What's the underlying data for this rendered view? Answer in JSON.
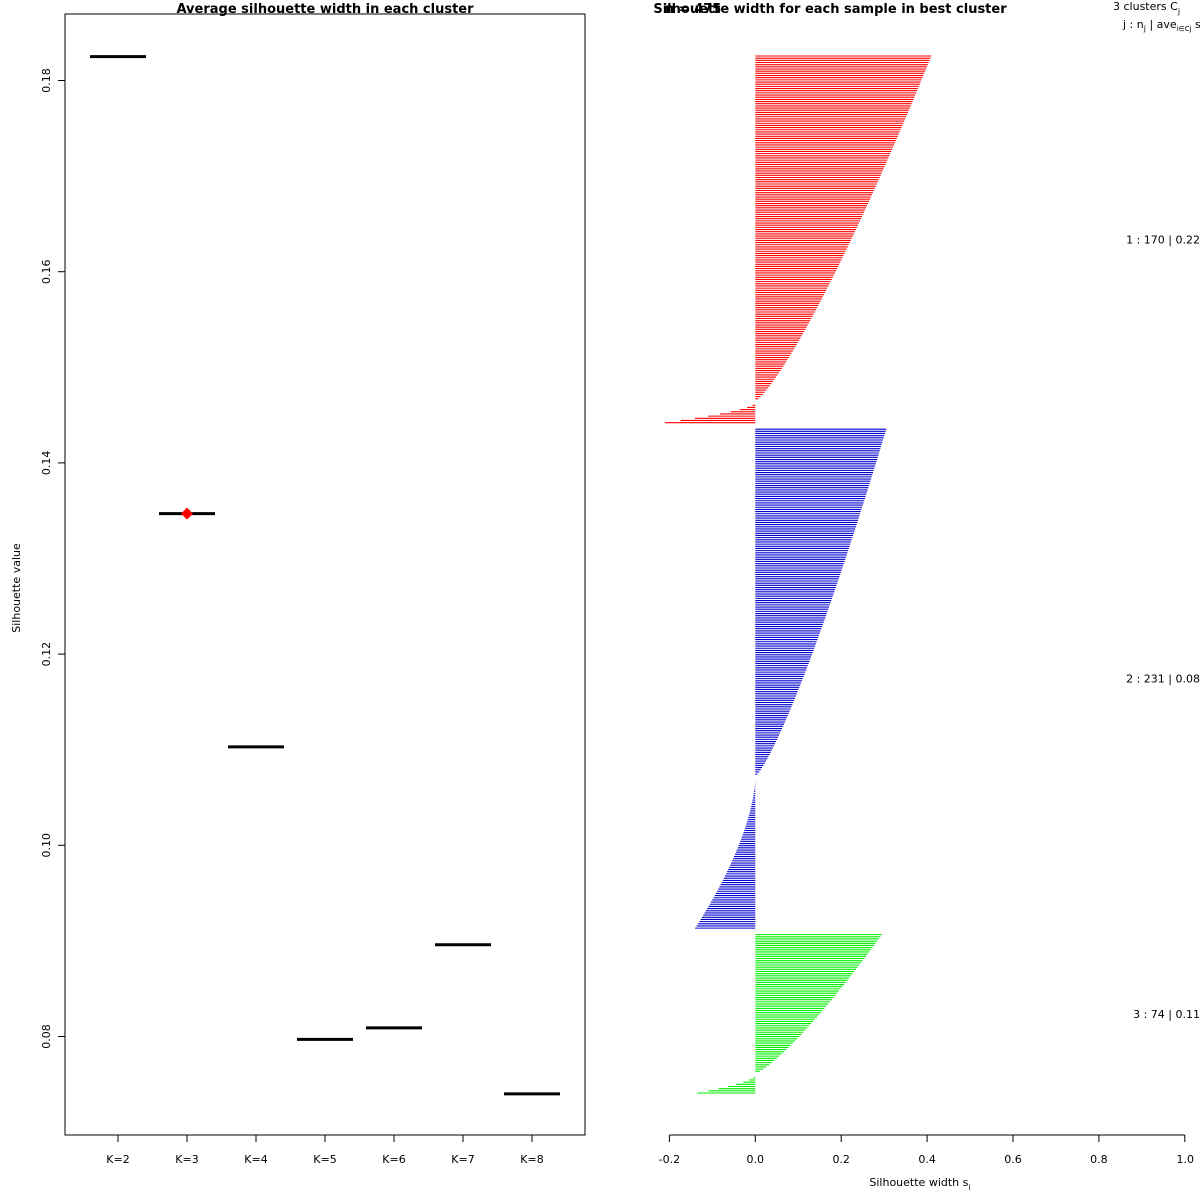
{
  "chart_data": [
    {
      "type": "scatter",
      "title": "Average silhouette width in each cluster",
      "xlabel": "",
      "ylabel": "Silhouette value",
      "categories": [
        "K=2",
        "K=3",
        "K=4",
        "K=5",
        "K=6",
        "K=7",
        "K=8"
      ],
      "values": [
        0.1825,
        0.1347,
        0.1103,
        0.0797,
        0.0809,
        0.0896,
        0.074
      ],
      "best_index": 1,
      "best_color": "#ff0000",
      "mark_color": "#000000",
      "yticks": [
        "0.08",
        "0.10",
        "0.12",
        "0.14",
        "0.16",
        "0.18"
      ],
      "ytick_values": [
        0.08,
        0.1,
        0.12,
        0.14,
        0.16,
        0.18
      ],
      "ylim": [
        0.07,
        0.1865
      ]
    },
    {
      "type": "bar",
      "title": "Silhouette width for each sample in best cluster",
      "title_overlap": "n = 475",
      "xlabel": "Silhouette width s",
      "xlabel_sub": "i",
      "xlim": [
        -0.2,
        1.0
      ],
      "xticks": [
        "-0.2",
        "0.0",
        "0.2",
        "0.4",
        "0.6",
        "0.8",
        "1.0"
      ],
      "xtick_values": [
        -0.2,
        0.0,
        0.2,
        0.4,
        0.6,
        0.8,
        1.0
      ],
      "legend_header": "3  clusters  C",
      "legend_header_sub": "j",
      "legend_sub": "j :  n",
      "legend_sub_j": "j",
      "legend_sub_ave": " | ave",
      "legend_sub_ave_sub": "i∈Cj",
      "legend_sub_end": "  s",
      "series": [
        {
          "name": "1 :  170  |  0.22",
          "n": 170,
          "max": 0.41,
          "min": -0.21,
          "neg_count": 10,
          "color": "#ff0000"
        },
        {
          "name": "2 :  231  |  0.08",
          "n": 231,
          "max": 0.305,
          "min": -0.14,
          "neg_count": 70,
          "color": "#0000cd"
        },
        {
          "name": "3 :  74  |  0.11",
          "n": 74,
          "max": 0.295,
          "min": -0.135,
          "neg_count": 9,
          "color": "#00ee00"
        }
      ]
    }
  ]
}
